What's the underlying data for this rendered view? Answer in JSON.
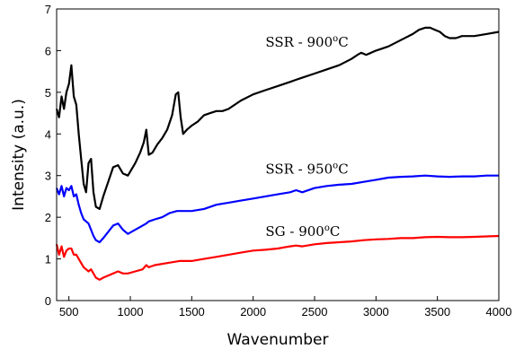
{
  "chart_data": {
    "type": "line",
    "xlabel": "Wavenumber",
    "ylabel": "Intensity (a.u.)",
    "xlim": [
      400,
      4000
    ],
    "ylim": [
      0,
      7
    ],
    "xticks": [
      "500",
      "1000",
      "1500",
      "2000",
      "2500",
      "3000",
      "3500",
      "4000"
    ],
    "yticks": [
      "0",
      "1",
      "2",
      "3",
      "4",
      "5",
      "6",
      "7"
    ],
    "grid": false,
    "legend": "none",
    "annotations": [
      {
        "series": "SSR - 900°C",
        "prefix": "SSR - 900",
        "sup": "o",
        "suffix": "C",
        "x": 2100,
        "y": 6.1
      },
      {
        "series": "SSR - 950°C",
        "prefix": "SSR - 950",
        "sup": "o",
        "suffix": "C",
        "x": 2100,
        "y": 3.05
      },
      {
        "series": "SG - 900°C",
        "prefix": "SG - 900",
        "sup": "o",
        "suffix": "C",
        "x": 2100,
        "y": 1.55
      }
    ],
    "series": [
      {
        "name": "SSR - 900°C",
        "color": "#000000",
        "x": [
          400,
          420,
          440,
          460,
          480,
          500,
          520,
          540,
          560,
          580,
          600,
          620,
          640,
          660,
          680,
          700,
          720,
          750,
          780,
          820,
          860,
          900,
          940,
          980,
          1040,
          1080,
          1110,
          1130,
          1150,
          1180,
          1220,
          1260,
          1300,
          1340,
          1370,
          1390,
          1410,
          1430,
          1460,
          1500,
          1550,
          1600,
          1650,
          1700,
          1750,
          1800,
          1900,
          2000,
          2100,
          2200,
          2300,
          2350,
          2400,
          2500,
          2600,
          2700,
          2800,
          2850,
          2880,
          2920,
          2960,
          3000,
          3100,
          3200,
          3300,
          3350,
          3400,
          3440,
          3480,
          3520,
          3560,
          3600,
          3650,
          3700,
          3800,
          3900,
          4000
        ],
        "y": [
          4.6,
          4.4,
          4.9,
          4.6,
          5.0,
          5.2,
          5.65,
          4.9,
          4.7,
          4.0,
          3.4,
          2.8,
          2.6,
          3.3,
          3.4,
          2.6,
          2.25,
          2.2,
          2.5,
          2.85,
          3.2,
          3.25,
          3.05,
          3.0,
          3.3,
          3.55,
          3.8,
          4.1,
          3.5,
          3.55,
          3.75,
          3.9,
          4.1,
          4.45,
          4.95,
          5.0,
          4.4,
          4.0,
          4.1,
          4.2,
          4.3,
          4.45,
          4.5,
          4.55,
          4.55,
          4.6,
          4.8,
          4.95,
          5.05,
          5.15,
          5.25,
          5.3,
          5.35,
          5.45,
          5.55,
          5.65,
          5.8,
          5.9,
          5.95,
          5.9,
          5.95,
          6.0,
          6.1,
          6.25,
          6.4,
          6.5,
          6.55,
          6.55,
          6.5,
          6.45,
          6.35,
          6.3,
          6.3,
          6.35,
          6.35,
          6.4,
          6.45
        ]
      },
      {
        "name": "SSR - 950°C",
        "color": "#0000ff",
        "x": [
          400,
          420,
          440,
          460,
          480,
          500,
          520,
          540,
          560,
          580,
          600,
          620,
          640,
          660,
          680,
          700,
          720,
          750,
          780,
          820,
          860,
          900,
          940,
          980,
          1040,
          1100,
          1130,
          1150,
          1200,
          1260,
          1320,
          1380,
          1420,
          1500,
          1600,
          1700,
          1800,
          1900,
          2000,
          2100,
          2200,
          2300,
          2350,
          2400,
          2500,
          2600,
          2700,
          2800,
          2900,
          3000,
          3100,
          3200,
          3300,
          3400,
          3500,
          3600,
          3700,
          3800,
          3900,
          4000
        ],
        "y": [
          2.7,
          2.55,
          2.75,
          2.5,
          2.7,
          2.65,
          2.75,
          2.5,
          2.55,
          2.3,
          2.1,
          1.95,
          1.9,
          1.85,
          1.7,
          1.55,
          1.45,
          1.4,
          1.5,
          1.65,
          1.8,
          1.85,
          1.7,
          1.6,
          1.7,
          1.8,
          1.85,
          1.9,
          1.95,
          2.0,
          2.1,
          2.15,
          2.15,
          2.15,
          2.2,
          2.3,
          2.35,
          2.4,
          2.45,
          2.5,
          2.55,
          2.6,
          2.65,
          2.6,
          2.7,
          2.75,
          2.78,
          2.8,
          2.85,
          2.9,
          2.95,
          2.97,
          2.98,
          3.0,
          2.98,
          2.97,
          2.98,
          2.98,
          3.0,
          3.0
        ]
      },
      {
        "name": "SG - 900°C",
        "color": "#ff0000",
        "x": [
          400,
          420,
          440,
          460,
          480,
          500,
          520,
          540,
          560,
          580,
          600,
          620,
          640,
          660,
          680,
          700,
          720,
          750,
          780,
          820,
          860,
          900,
          940,
          980,
          1040,
          1100,
          1130,
          1150,
          1200,
          1300,
          1400,
          1500,
          1600,
          1700,
          1800,
          1900,
          2000,
          2100,
          2200,
          2300,
          2350,
          2400,
          2500,
          2600,
          2700,
          2800,
          2900,
          3000,
          3100,
          3200,
          3300,
          3400,
          3500,
          3600,
          3700,
          3800,
          3900,
          4000
        ],
        "y": [
          1.35,
          1.1,
          1.3,
          1.05,
          1.2,
          1.25,
          1.25,
          1.1,
          1.1,
          1.0,
          0.9,
          0.8,
          0.75,
          0.7,
          0.75,
          0.65,
          0.55,
          0.5,
          0.55,
          0.6,
          0.65,
          0.7,
          0.65,
          0.65,
          0.7,
          0.75,
          0.85,
          0.8,
          0.85,
          0.9,
          0.95,
          0.95,
          1.0,
          1.05,
          1.1,
          1.15,
          1.2,
          1.22,
          1.25,
          1.3,
          1.32,
          1.3,
          1.35,
          1.38,
          1.4,
          1.42,
          1.45,
          1.47,
          1.48,
          1.5,
          1.5,
          1.52,
          1.53,
          1.52,
          1.52,
          1.53,
          1.54,
          1.55
        ]
      }
    ]
  }
}
